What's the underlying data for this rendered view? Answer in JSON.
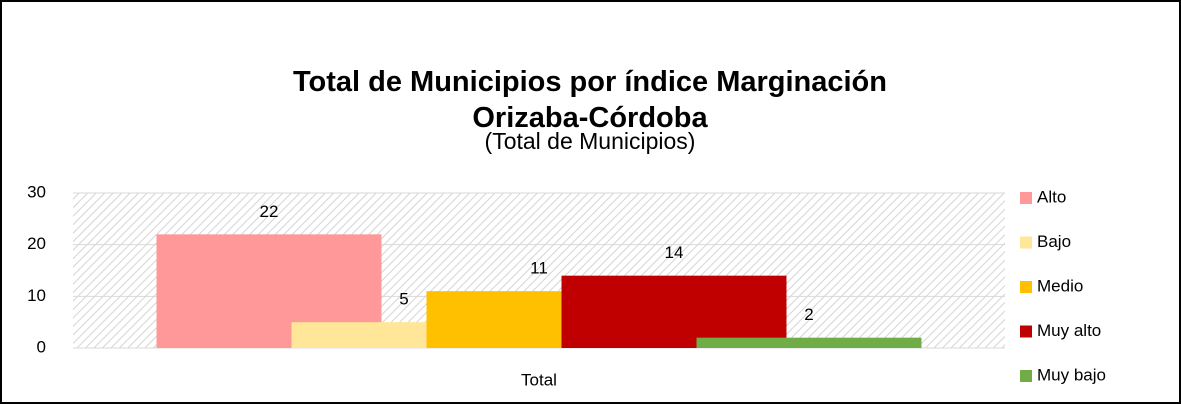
{
  "chart_data": {
    "type": "bar",
    "title": "Total de Municipios por índice Marginación Orizaba-Córdoba",
    "subtitle": "(Total de Municipios)",
    "categories": [
      "Total"
    ],
    "series": [
      {
        "name": "Alto",
        "color": "#ff9999",
        "values": [
          22
        ]
      },
      {
        "name": "Bajo",
        "color": "#ffe699",
        "values": [
          5
        ]
      },
      {
        "name": "Medio",
        "color": "#ffc000",
        "values": [
          11
        ]
      },
      {
        "name": "Muy alto",
        "color": "#c00000",
        "values": [
          14
        ]
      },
      {
        "name": "Muy bajo",
        "color": "#70ad47",
        "values": [
          2
        ]
      }
    ],
    "ylim": [
      0,
      30
    ],
    "yticks": [
      0,
      10,
      20,
      30
    ],
    "grid": true,
    "legend": "right"
  }
}
